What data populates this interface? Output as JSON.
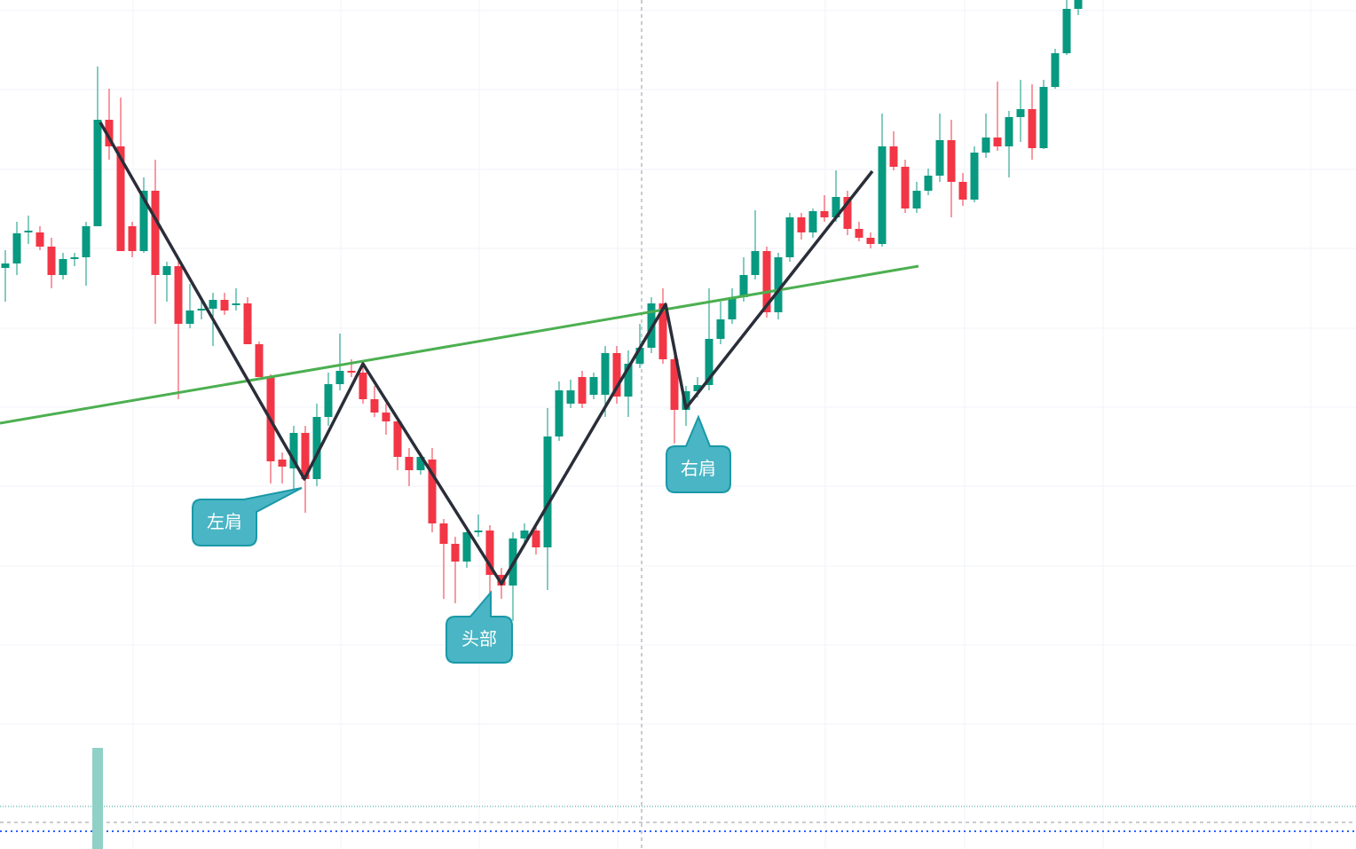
{
  "chart_data": {
    "type": "candlestick",
    "candles": [
      [
        655,
        675,
        617,
        660
      ],
      [
        660,
        707,
        647,
        694
      ],
      [
        695,
        714,
        682,
        697
      ],
      [
        695,
        702,
        675,
        679
      ],
      [
        679,
        689,
        632,
        647
      ],
      [
        647,
        672,
        642,
        665
      ],
      [
        665,
        672,
        657,
        667
      ],
      [
        667,
        707,
        635,
        702
      ],
      [
        702,
        882,
        702,
        822
      ],
      [
        822,
        857,
        777,
        792
      ],
      [
        792,
        847,
        674,
        674
      ],
      [
        702,
        707,
        667,
        674
      ],
      [
        674,
        757,
        672,
        742
      ],
      [
        742,
        777,
        592,
        647
      ],
      [
        647,
        662,
        617,
        657
      ],
      [
        657,
        662,
        507,
        592
      ],
      [
        592,
        637,
        587,
        607
      ],
      [
        607,
        617,
        597,
        609
      ],
      [
        609,
        627,
        567,
        619
      ],
      [
        619,
        627,
        602,
        607
      ],
      [
        613,
        632,
        607,
        615
      ],
      [
        615,
        622,
        569,
        569
      ],
      [
        569,
        572,
        532,
        532
      ],
      [
        532,
        535,
        412,
        437
      ],
      [
        439,
        447,
        412,
        431
      ],
      [
        429,
        477,
        402,
        469
      ],
      [
        469,
        477,
        379,
        417
      ],
      [
        417,
        502,
        409,
        487
      ],
      [
        487,
        537,
        477,
        524
      ],
      [
        524,
        581,
        517,
        539
      ],
      [
        539,
        552,
        532,
        537
      ],
      [
        537,
        549,
        502,
        507
      ],
      [
        507,
        522,
        487,
        492
      ],
      [
        492,
        502,
        467,
        482
      ],
      [
        482,
        487,
        427,
        442
      ],
      [
        442,
        452,
        409,
        427
      ],
      [
        427,
        447,
        422,
        442
      ],
      [
        439,
        452,
        357,
        367
      ],
      [
        367,
        372,
        282,
        344
      ],
      [
        344,
        352,
        277,
        324
      ],
      [
        324,
        362,
        317,
        357
      ],
      [
        357,
        377,
        352,
        359
      ],
      [
        359,
        365,
        289,
        309
      ],
      [
        309,
        317,
        282,
        297
      ],
      [
        297,
        357,
        257,
        350
      ],
      [
        350,
        367,
        345,
        359
      ],
      [
        359,
        365,
        332,
        340
      ],
      [
        340,
        497,
        292,
        465
      ],
      [
        465,
        527,
        460,
        517
      ],
      [
        502,
        529,
        497,
        517
      ],
      [
        532,
        539,
        497,
        502
      ],
      [
        512,
        537,
        507,
        532
      ],
      [
        512,
        567,
        487,
        559
      ],
      [
        559,
        567,
        502,
        510
      ],
      [
        510,
        562,
        487,
        547
      ],
      [
        547,
        592,
        542,
        565
      ],
      [
        565,
        622,
        559,
        615
      ],
      [
        615,
        632,
        547,
        552
      ],
      [
        552,
        557,
        457,
        495
      ],
      [
        495,
        522,
        477,
        516
      ],
      [
        516,
        532,
        509,
        523
      ],
      [
        523,
        632,
        517,
        575
      ],
      [
        575,
        617,
        569,
        597
      ],
      [
        597,
        632,
        592,
        622
      ],
      [
        622,
        667,
        617,
        647
      ],
      [
        647,
        720,
        642,
        674
      ],
      [
        674,
        679,
        599,
        605
      ],
      [
        605,
        672,
        597,
        667
      ],
      [
        667,
        717,
        662,
        712
      ],
      [
        712,
        717,
        687,
        695
      ],
      [
        695,
        722,
        689,
        719
      ],
      [
        719,
        737,
        707,
        712
      ],
      [
        712,
        765,
        707,
        735
      ],
      [
        735,
        742,
        692,
        699
      ],
      [
        699,
        707,
        685,
        689
      ],
      [
        689,
        695,
        677,
        682
      ],
      [
        682,
        829,
        679,
        792
      ],
      [
        792,
        809,
        765,
        769
      ],
      [
        769,
        777,
        717,
        722
      ],
      [
        722,
        752,
        717,
        742
      ],
      [
        742,
        767,
        737,
        759
      ],
      [
        759,
        829,
        752,
        799
      ],
      [
        799,
        822,
        712,
        752
      ],
      [
        752,
        762,
        725,
        732
      ],
      [
        732,
        792,
        729,
        785
      ],
      [
        785,
        829,
        779,
        802
      ],
      [
        802,
        865,
        787,
        792
      ],
      [
        792,
        832,
        757,
        825
      ],
      [
        825,
        867,
        797,
        834
      ],
      [
        834,
        862,
        777,
        790
      ],
      [
        790,
        867,
        789,
        859
      ],
      [
        859,
        902,
        857,
        897
      ],
      [
        897,
        957,
        895,
        947
      ],
      [
        947,
        957,
        940,
        957
      ]
    ],
    "ylim": [
      0,
      957
    ],
    "up_color": "#089981",
    "down_color": "#f23645"
  },
  "annotations": {
    "left_shoulder": "左肩",
    "head": "头部",
    "right_shoulder": "右肩"
  }
}
